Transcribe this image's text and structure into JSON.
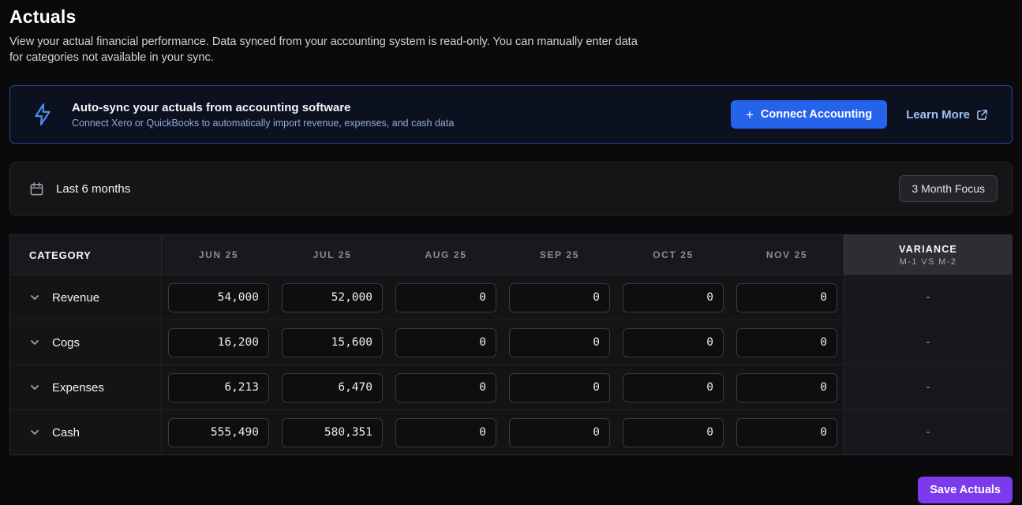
{
  "page": {
    "title": "Actuals",
    "description_line1": "View your actual financial performance. Data synced from your accounting system is read-only. You can manually enter data",
    "description_line2": "for categories not available in your sync."
  },
  "banner": {
    "title": "Auto-sync your actuals from accounting software",
    "subtitle": "Connect Xero or QuickBooks to automatically import revenue, expenses, and cash data",
    "connect_button_label": "Connect Accounting",
    "connect_plus": "+",
    "learn_more_label": "Learn More"
  },
  "filter_bar": {
    "range_label": "Last 6 months",
    "focus_button_label": "3 Month Focus"
  },
  "table": {
    "category_header": "CATEGORY",
    "months": [
      "JUN 25",
      "JUL 25",
      "AUG 25",
      "SEP 25",
      "OCT 25",
      "NOV 25"
    ],
    "variance_header": "VARIANCE",
    "variance_subheader": "M-1 VS M-2",
    "rows": [
      {
        "label": "Revenue",
        "values": [
          "54,000",
          "52,000",
          "0",
          "0",
          "0",
          "0"
        ],
        "variance": "-"
      },
      {
        "label": "Cogs",
        "values": [
          "16,200",
          "15,600",
          "0",
          "0",
          "0",
          "0"
        ],
        "variance": "-"
      },
      {
        "label": "Expenses",
        "values": [
          "6,213",
          "6,470",
          "0",
          "0",
          "0",
          "0"
        ],
        "variance": "-"
      },
      {
        "label": "Cash",
        "values": [
          "555,490",
          "580,351",
          "0",
          "0",
          "0",
          "0"
        ],
        "variance": "-"
      }
    ]
  },
  "footer": {
    "save_button_label": "Save Actuals"
  },
  "colors": {
    "accent_blue": "#2563eb",
    "accent_purple": "#7c3aed",
    "link_blue": "#9ec2f3",
    "banner_border": "#2a4496",
    "banner_subtitle": "#8fa9d9"
  }
}
